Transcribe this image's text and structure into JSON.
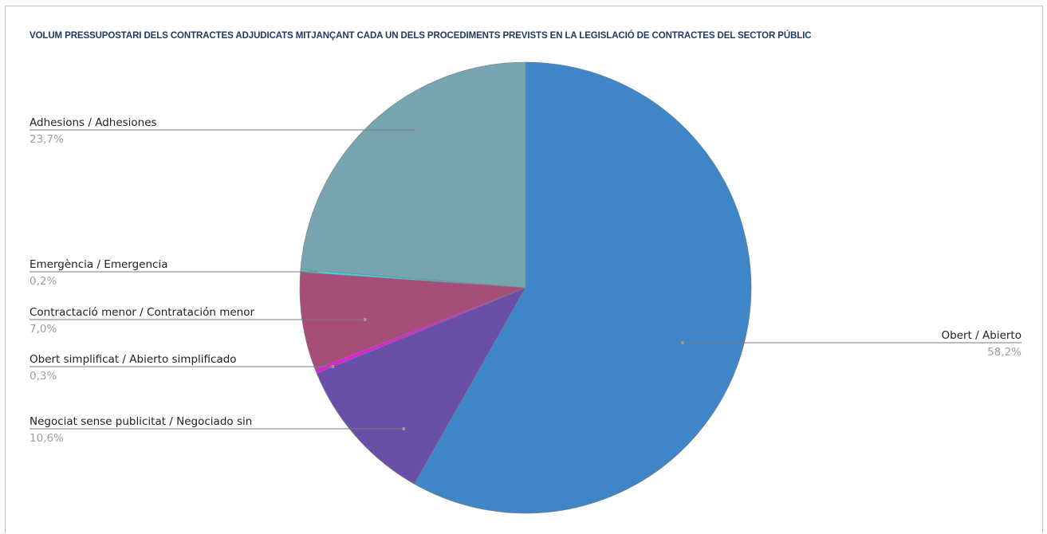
{
  "chart_data": {
    "type": "pie",
    "title": "VOLUM PRESSUPOSTARI DELS CONTRACTES ADJUDICATS MITJANÇANT CADA UN DELS PROCEDIMENTS PREVISTS EN LA LEGISLACIÓ DE CONTRACTES DEL SECTOR PÚBLIC",
    "slices": [
      {
        "label": "Obert / Abierto",
        "value": 58.2,
        "value_label": "58,2%",
        "color": "#3f86c8",
        "label_side": "right"
      },
      {
        "label": "Negociat sense publicitat / Negociado sin",
        "value": 10.6,
        "value_label": "10,6%",
        "color": "#6a4fa8",
        "label_side": "left"
      },
      {
        "label": "Obert simplificat / Abierto simplificado",
        "value": 0.3,
        "value_label": "0,3%",
        "color": "#e020d8",
        "label_side": "left"
      },
      {
        "label": "Contractació menor / Contratación menor",
        "value": 7.0,
        "value_label": "7,0%",
        "color": "#a64d79",
        "label_side": "left"
      },
      {
        "label": "Emergència / Emergencia",
        "value": 0.2,
        "value_label": "0,2%",
        "color": "#3fd0d8",
        "label_side": "left"
      },
      {
        "label": "Adhesions / Adhesiones",
        "value": 23.7,
        "value_label": "23,7%",
        "color": "#76a5af",
        "label_side": "left"
      }
    ]
  }
}
